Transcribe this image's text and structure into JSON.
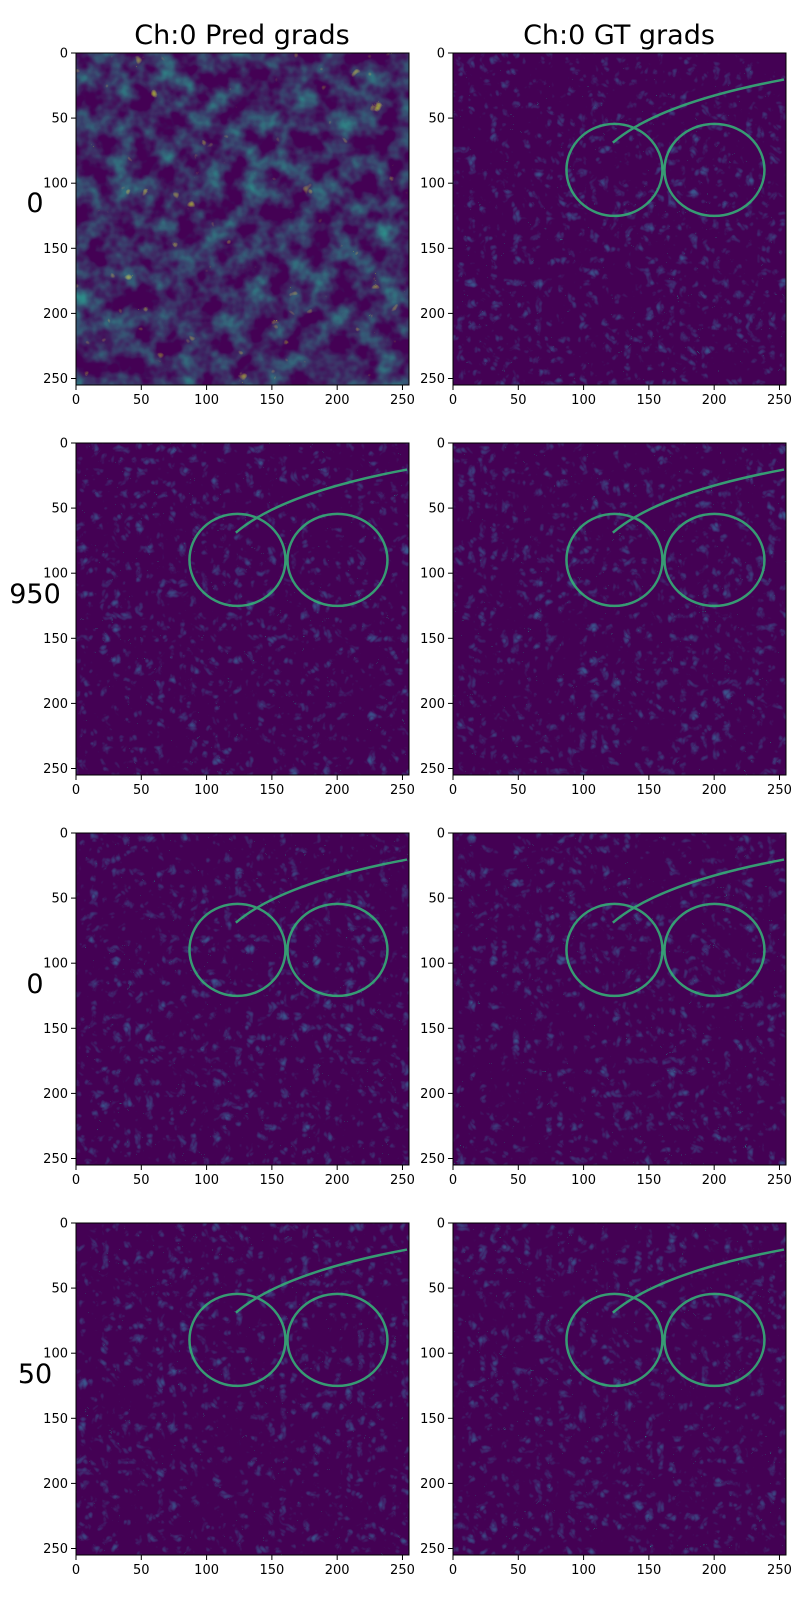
{
  "chart_data": {
    "type": "heatmap",
    "colormap": "viridis",
    "background": "#440154",
    "column_titles": [
      "Ch:0 Pred grads",
      "Ch:0 GT grads"
    ],
    "row_labels": [
      "0",
      "950",
      "0",
      "50"
    ],
    "x_ticks": [
      "0",
      "50",
      "100",
      "150",
      "200",
      "250"
    ],
    "y_ticks": [
      "0",
      "50",
      "100",
      "150",
      "200",
      "250"
    ],
    "x_range": [
      0,
      255
    ],
    "y_range": [
      0,
      255
    ],
    "y_inverted": true,
    "panels": [
      {
        "row": 0,
        "col": 0,
        "pattern": "noise"
      },
      {
        "row": 0,
        "col": 1,
        "pattern": "edges"
      },
      {
        "row": 1,
        "col": 0,
        "pattern": "edges"
      },
      {
        "row": 1,
        "col": 1,
        "pattern": "edges"
      },
      {
        "row": 2,
        "col": 0,
        "pattern": "edges"
      },
      {
        "row": 2,
        "col": 1,
        "pattern": "edges"
      },
      {
        "row": 3,
        "col": 0,
        "pattern": "edges"
      },
      {
        "row": 3,
        "col": 1,
        "pattern": "edges"
      }
    ]
  }
}
